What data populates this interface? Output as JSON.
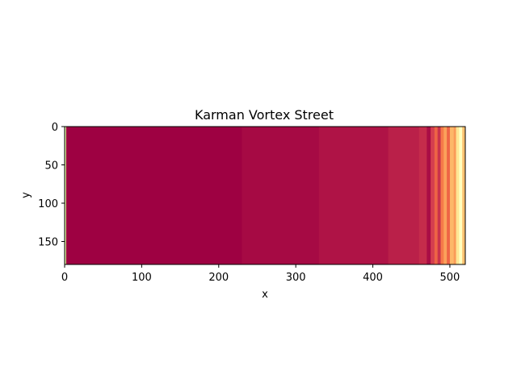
{
  "chart_data": {
    "type": "heatmap",
    "title": "Karman Vortex Street",
    "xlabel": "x",
    "ylabel": "y",
    "xlim": [
      0,
      520
    ],
    "ylim": [
      180,
      0
    ],
    "xticks": [
      "0",
      "100",
      "200",
      "300",
      "400",
      "500"
    ],
    "yticks": [
      "0",
      "50",
      "100",
      "150"
    ],
    "grid": false,
    "colormap": "Spectral",
    "column_values": [
      {
        "x": 0,
        "value": 0.62
      },
      {
        "x": 2,
        "value": 0.0
      },
      {
        "x": 230,
        "value": 0.015
      },
      {
        "x": 330,
        "value": 0.03
      },
      {
        "x": 420,
        "value": 0.05
      },
      {
        "x": 460,
        "value": 0.07
      },
      {
        "x": 470,
        "value": 0.02
      },
      {
        "x": 475,
        "value": 0.1
      },
      {
        "x": 480,
        "value": 0.18
      },
      {
        "x": 484,
        "value": 0.08
      },
      {
        "x": 488,
        "value": 0.22
      },
      {
        "x": 492,
        "value": 0.28
      },
      {
        "x": 496,
        "value": 0.18
      },
      {
        "x": 500,
        "value": 0.32
      },
      {
        "x": 505,
        "value": 0.27
      },
      {
        "x": 508,
        "value": 0.42
      },
      {
        "x": 512,
        "value": 0.5
      },
      {
        "x": 516,
        "value": 0.34
      },
      {
        "x": 520,
        "value": 0.34
      }
    ]
  }
}
